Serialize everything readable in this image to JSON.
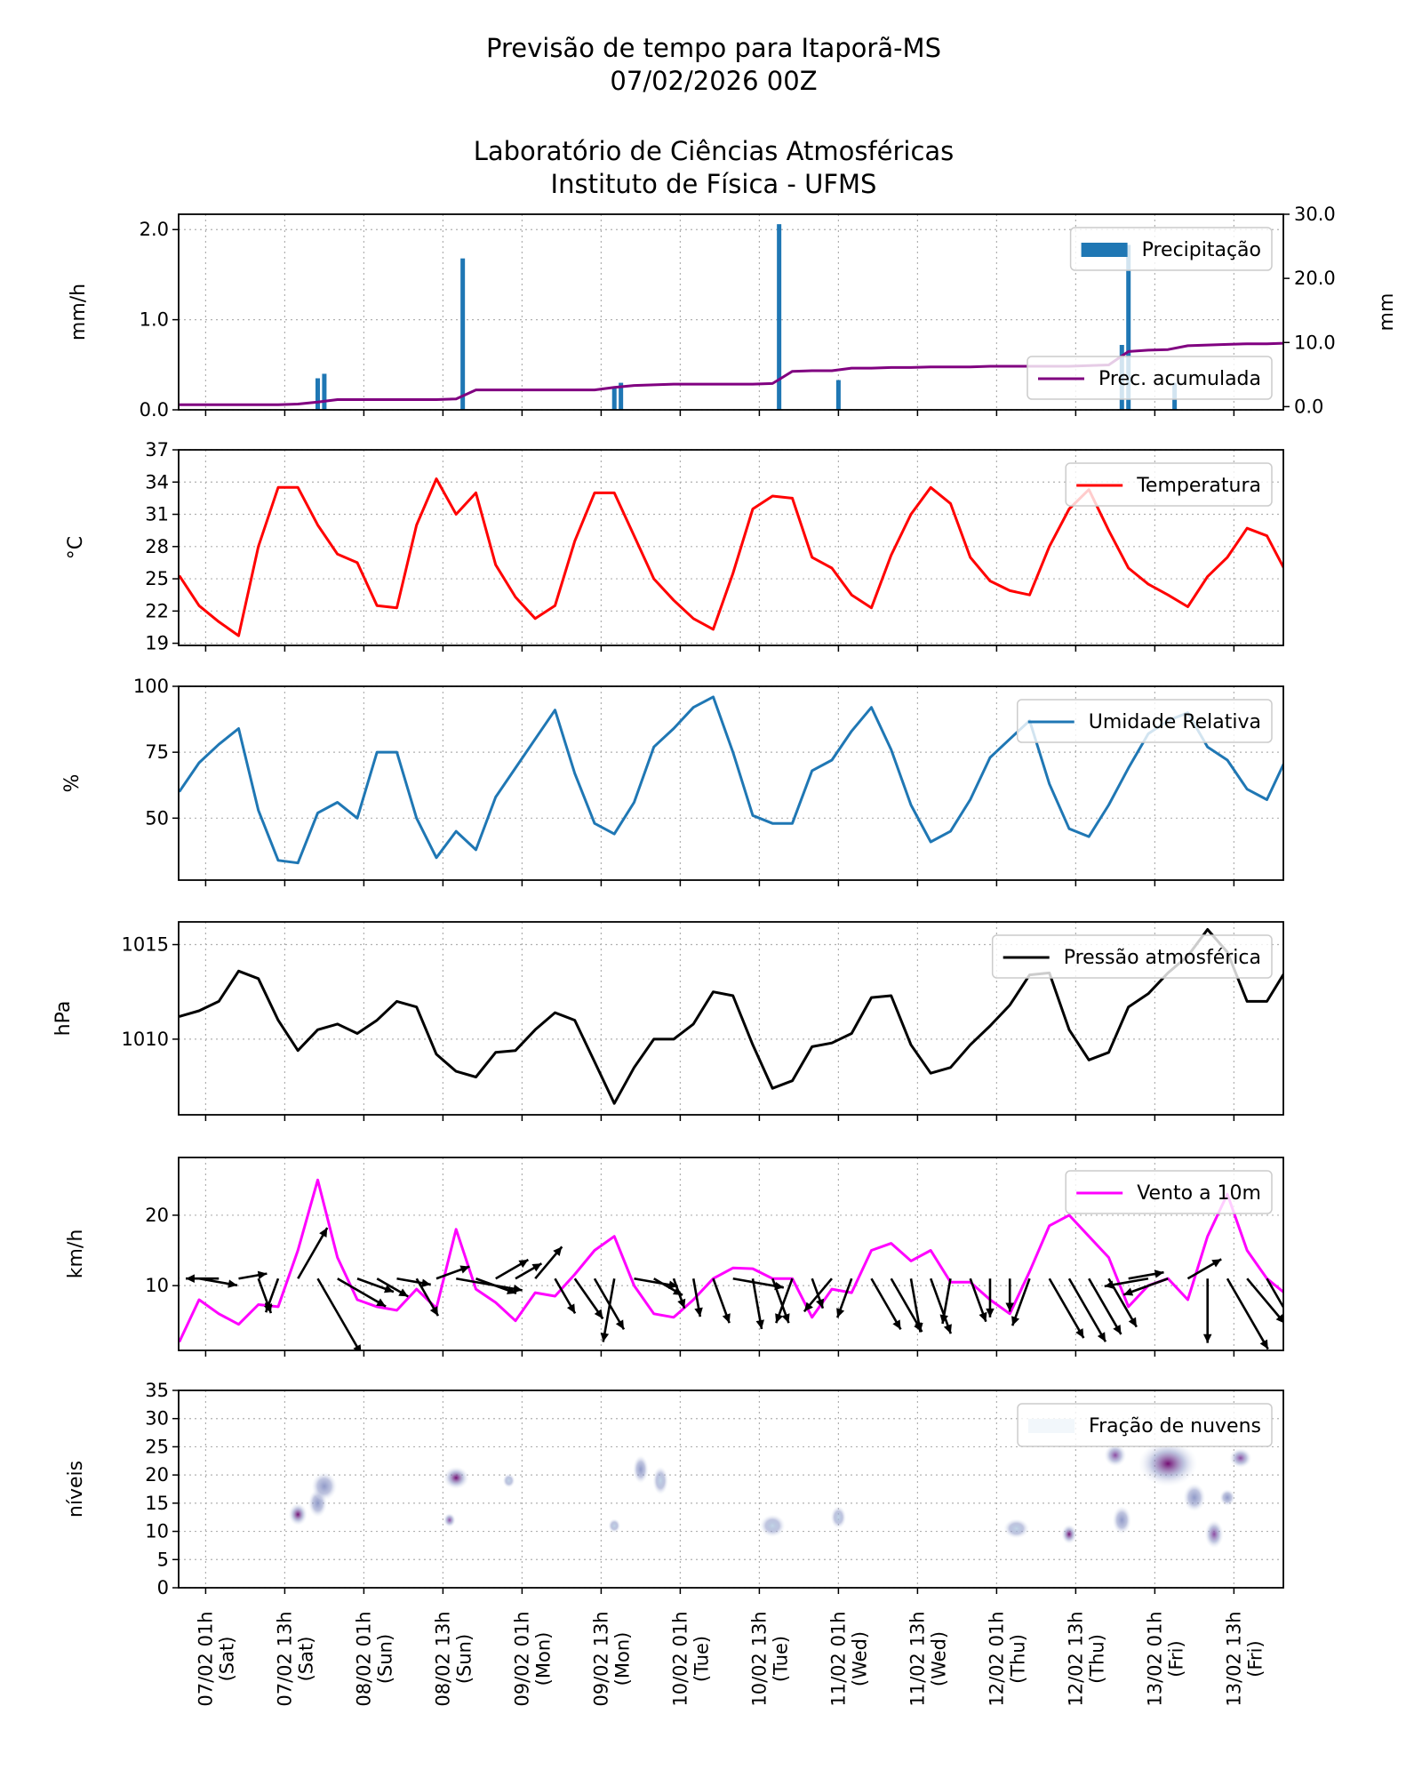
{
  "title": {
    "line1": "Previsão de tempo para Itaporã-MS",
    "line2": "07/02/2026 00Z",
    "line3": "Laboratório de Ciências Atmosféricas",
    "line4": "Instituto de Física - UFMS"
  },
  "chart_data": {
    "type": "line",
    "xlim": [
      "06/02 21h",
      "13/02 20h"
    ],
    "x_ticks": [
      {
        "date": "07/02 01h",
        "day": "(Sat)"
      },
      {
        "date": "07/02 13h",
        "day": "(Sat)"
      },
      {
        "date": "08/02 01h",
        "day": "(Sun)"
      },
      {
        "date": "08/02 13h",
        "day": "(Sun)"
      },
      {
        "date": "09/02 01h",
        "day": "(Mon)"
      },
      {
        "date": "09/02 13h",
        "day": "(Mon)"
      },
      {
        "date": "10/02 01h",
        "day": "(Tue)"
      },
      {
        "date": "10/02 13h",
        "day": "(Tue)"
      },
      {
        "date": "11/02 01h",
        "day": "(Wed)"
      },
      {
        "date": "11/02 13h",
        "day": "(Wed)"
      },
      {
        "date": "12/02 01h",
        "day": "(Thu)"
      },
      {
        "date": "12/02 13h",
        "day": "(Thu)"
      },
      {
        "date": "13/02 01h",
        "day": "(Fri)"
      },
      {
        "date": "13/02 13h",
        "day": "(Fri)"
      }
    ],
    "grid": true,
    "time": [
      "06/02 21h",
      "07/02 00h",
      "07/02 03h",
      "07/02 06h",
      "07/02 09h",
      "07/02 12h",
      "07/02 15h",
      "07/02 18h",
      "07/02 21h",
      "08/02 00h",
      "08/02 03h",
      "08/02 06h",
      "08/02 09h",
      "08/02 12h",
      "08/02 15h",
      "08/02 18h",
      "08/02 21h",
      "09/02 00h",
      "09/02 03h",
      "09/02 06h",
      "09/02 09h",
      "09/02 12h",
      "09/02 15h",
      "09/02 18h",
      "09/02 21h",
      "10/02 00h",
      "10/02 03h",
      "10/02 06h",
      "10/02 09h",
      "10/02 12h",
      "10/02 15h",
      "10/02 18h",
      "10/02 21h",
      "11/02 00h",
      "11/02 03h",
      "11/02 06h",
      "11/02 09h",
      "11/02 12h",
      "11/02 15h",
      "11/02 18h",
      "11/02 21h",
      "12/02 00h",
      "12/02 03h",
      "12/02 06h",
      "12/02 09h",
      "12/02 12h",
      "12/02 15h",
      "12/02 18h",
      "12/02 21h",
      "13/02 00h",
      "13/02 03h",
      "13/02 06h",
      "13/02 09h",
      "13/02 12h",
      "13/02 15h",
      "13/02 18h",
      "13/02 21h"
    ],
    "panels": [
      {
        "id": "precip",
        "ylabel": "mm/h",
        "ylim": [
          0,
          2.17
        ],
        "yticks": [
          0,
          1,
          2
        ],
        "ytick_labels": [
          "0.0",
          "1.0",
          "2.0"
        ],
        "bars": {
          "name": "Precipitação",
          "color": "#1f77b4",
          "legend": "top-right",
          "points": [
            {
              "t": "07/02 18h",
              "v": 0.35
            },
            {
              "t": "07/02 19h",
              "v": 0.4
            },
            {
              "t": "08/02 16h",
              "v": 1.68
            },
            {
              "t": "09/02 15h",
              "v": 0.25
            },
            {
              "t": "09/02 16h",
              "v": 0.3
            },
            {
              "t": "10/02 16h",
              "v": 2.06
            },
            {
              "t": "11/02 01h",
              "v": 0.33
            },
            {
              "t": "12/02 20h",
              "v": 0.72
            },
            {
              "t": "12/02 21h",
              "v": 1.83
            },
            {
              "t": "13/02 04h",
              "v": 0.3
            }
          ]
        },
        "right_axis": {
          "ylabel": "mm",
          "ylim": [
            -0.5,
            30
          ],
          "yticks": [
            0,
            10,
            20,
            30
          ],
          "ytick_labels": [
            "0.0",
            "10.0",
            "20.0",
            "30.0"
          ],
          "series": {
            "name": "Prec. acumulada",
            "color": "#800080",
            "legend": "lower-right",
            "values": [
              0.3,
              0.3,
              0.3,
              0.3,
              0.3,
              0.3,
              0.4,
              0.7,
              1.1,
              1.1,
              1.1,
              1.1,
              1.1,
              1.1,
              1.2,
              2.6,
              2.6,
              2.6,
              2.6,
              2.6,
              2.6,
              2.6,
              3.0,
              3.3,
              3.4,
              3.5,
              3.5,
              3.5,
              3.5,
              3.5,
              3.6,
              5.5,
              5.6,
              5.6,
              6.0,
              6.0,
              6.1,
              6.1,
              6.2,
              6.2,
              6.2,
              6.3,
              6.3,
              6.3,
              6.3,
              6.3,
              6.4,
              6.5,
              8.6,
              8.8,
              8.9,
              9.5,
              9.6,
              9.7,
              9.8,
              9.8,
              9.9
            ]
          }
        }
      },
      {
        "id": "temp",
        "ylabel": "°C",
        "ylim": [
          18.8,
          37
        ],
        "yticks": [
          19,
          22,
          25,
          28,
          31,
          34,
          37
        ],
        "ytick_labels": [
          "19",
          "22",
          "25",
          "28",
          "31",
          "34",
          "37"
        ],
        "series": {
          "name": "Temperatura",
          "color": "#ff0000",
          "legend": "top-right",
          "values": [
            25.3,
            22.5,
            21.0,
            19.7,
            28,
            33.5,
            33.5,
            30,
            27.3,
            26.5,
            22.5,
            22.3,
            30,
            34.3,
            31,
            33,
            26.3,
            23.3,
            21.3,
            22.5,
            28.5,
            33,
            33,
            29,
            25,
            23,
            21.3,
            20.3,
            25.5,
            31.5,
            32.7,
            32.5,
            27,
            26,
            23.5,
            22.3,
            27.2,
            31,
            33.5,
            32,
            27,
            24.8,
            23.9,
            23.5,
            28,
            31.5,
            33.3,
            29.5,
            26,
            24.5,
            23.5,
            22.4,
            25.2,
            27,
            29.7,
            29,
            25.5
          ]
        }
      },
      {
        "id": "rh",
        "ylabel": "%",
        "ylim": [
          26.5,
          100
        ],
        "yticks": [
          50,
          75,
          100
        ],
        "ytick_labels": [
          "50",
          "75",
          "100"
        ],
        "series": {
          "name": "Umidade Relativa",
          "color": "#1f77b4",
          "legend": "top-right",
          "values": [
            60,
            71,
            78,
            84,
            53,
            34,
            33,
            52,
            56,
            50,
            75,
            75,
            50,
            35,
            45,
            38,
            58,
            69,
            80,
            91,
            67,
            48,
            44,
            56,
            77,
            84,
            92,
            96,
            75,
            51,
            48,
            48,
            68,
            72,
            83,
            92,
            76,
            55,
            41,
            45,
            57,
            73,
            80,
            87,
            63,
            46,
            43,
            55,
            69,
            82,
            87,
            90,
            77,
            72,
            61,
            57,
            73
          ]
        }
      },
      {
        "id": "pressure",
        "ylabel": "hPa",
        "ylim": [
          1006.0,
          1016.2
        ],
        "yticks": [
          1010,
          1015
        ],
        "ytick_labels": [
          "1010",
          "1015"
        ],
        "series": {
          "name": "Pressão atmosférica",
          "color": "#000000",
          "legend": "top-right",
          "values": [
            1011.2,
            1011.5,
            1012.0,
            1013.6,
            1013.2,
            1011.0,
            1009.4,
            1010.5,
            1010.8,
            1010.3,
            1011.0,
            1012.0,
            1011.7,
            1009.2,
            1008.3,
            1008.0,
            1009.3,
            1009.4,
            1010.5,
            1011.4,
            1011.0,
            1008.8,
            1006.6,
            1008.5,
            1010.0,
            1010.0,
            1010.8,
            1012.5,
            1012.3,
            1009.7,
            1007.4,
            1007.8,
            1009.6,
            1009.8,
            1010.3,
            1012.2,
            1012.3,
            1009.7,
            1008.2,
            1008.5,
            1009.7,
            1010.7,
            1011.8,
            1013.4,
            1013.5,
            1010.5,
            1008.9,
            1009.3,
            1011.7,
            1012.4,
            1013.5,
            1014.4,
            1015.8,
            1014.6,
            1012.0,
            1012.0,
            1013.7
          ]
        }
      },
      {
        "id": "wind",
        "ylabel": "km/h",
        "ylim": [
          0.8,
          28.2
        ],
        "yticks": [
          10,
          20
        ],
        "ytick_labels": [
          "10",
          "20"
        ],
        "series": {
          "name": "Vento a 10m",
          "color": "#ff00ff",
          "legend": "top-right",
          "values": [
            2,
            8,
            6,
            4.5,
            7.3,
            7,
            15,
            25,
            14,
            8,
            7,
            6.5,
            9.5,
            6.8,
            18,
            9.5,
            7.6,
            5,
            9,
            8.5,
            11.6,
            15,
            17,
            10,
            6,
            5.5,
            8,
            11,
            12.5,
            12.4,
            11,
            11,
            5.5,
            9.5,
            9,
            15,
            16,
            13.5,
            15,
            10.5,
            10.5,
            8,
            6,
            12,
            18.5,
            20,
            17,
            14,
            7,
            10,
            11,
            8,
            17,
            23,
            15,
            11,
            8.7
          ]
        },
        "arrows": {
          "color": "#000000",
          "direction_deg": [
            280,
            100,
            270,
            80,
            160,
            200,
            30,
            150,
            120,
            110,
            120,
            100,
            150,
            70,
            100,
            110,
            60,
            60,
            40,
            150,
            145,
            150,
            190,
            100,
            120,
            160,
            170,
            160,
            100,
            170,
            160,
            200,
            160,
            220,
            200,
            150,
            150,
            170,
            160,
            190,
            160,
            180,
            180,
            200,
            150,
            150,
            150,
            150,
            80,
            260,
            250,
            60,
            180,
            150,
            140,
            150,
            110
          ]
        }
      },
      {
        "id": "clouds",
        "type": "contour",
        "ylabel": "níveis",
        "ylim": [
          0,
          35
        ],
        "yticks": [
          0,
          5,
          10,
          15,
          20,
          25,
          30,
          35
        ],
        "ytick_labels": [
          "0",
          "5",
          "10",
          "15",
          "20",
          "25",
          "30",
          "35"
        ],
        "legend_label": "Fração de nuvens",
        "legend": "top-right",
        "colormap": [
          "#f2f7fb",
          "#bfd3e6",
          "#8c96c6",
          "#88419d",
          "#6e016b"
        ],
        "blobs": [
          {
            "t": "07/02 15h",
            "level": 13,
            "fraction": 0.8,
            "hours_span": 2,
            "levels_span": 3
          },
          {
            "t": "07/02 18h",
            "level": 15,
            "fraction": 0.35,
            "hours_span": 2,
            "levels_span": 4
          },
          {
            "t": "07/02 19h",
            "level": 18,
            "fraction": 0.45,
            "hours_span": 3,
            "levels_span": 4
          },
          {
            "t": "08/02 14h",
            "level": 12,
            "fraction": 0.5,
            "hours_span": 1,
            "levels_span": 1.5
          },
          {
            "t": "08/02 15h",
            "level": 19.5,
            "fraction": 0.85,
            "hours_span": 3,
            "levels_span": 3
          },
          {
            "t": "08/02 23h",
            "level": 19,
            "fraction": 0.15,
            "hours_span": 1,
            "levels_span": 1.5
          },
          {
            "t": "09/02 15h",
            "level": 11,
            "fraction": 0.1,
            "hours_span": 1,
            "levels_span": 1.5
          },
          {
            "t": "09/02 19h",
            "level": 21,
            "fraction": 0.45,
            "hours_span": 1.5,
            "levels_span": 4
          },
          {
            "t": "09/02 22h",
            "level": 19,
            "fraction": 0.2,
            "hours_span": 1.5,
            "levels_span": 4
          },
          {
            "t": "10/02 15h",
            "level": 11,
            "fraction": 0.25,
            "hours_span": 3,
            "levels_span": 3
          },
          {
            "t": "11/02 01h",
            "level": 12.5,
            "fraction": 0.25,
            "hours_span": 1.5,
            "levels_span": 3
          },
          {
            "t": "12/02 04h",
            "level": 10.5,
            "fraction": 0.2,
            "hours_span": 3,
            "levels_span": 2.5
          },
          {
            "t": "12/02 12h",
            "level": 9.5,
            "fraction": 0.75,
            "hours_span": 1.5,
            "levels_span": 2.5
          },
          {
            "t": "12/02 19h",
            "level": 23.5,
            "fraction": 0.6,
            "hours_span": 2.5,
            "levels_span": 3
          },
          {
            "t": "12/02 20h",
            "level": 12,
            "fraction": 0.3,
            "hours_span": 2,
            "levels_span": 4
          },
          {
            "t": "13/02 03h",
            "level": 22,
            "fraction": 0.95,
            "hours_span": 8,
            "levels_span": 7
          },
          {
            "t": "13/02 07h",
            "level": 16,
            "fraction": 0.4,
            "hours_span": 2.5,
            "levels_span": 4
          },
          {
            "t": "13/02 10h",
            "level": 9.5,
            "fraction": 0.65,
            "hours_span": 2,
            "levels_span": 4
          },
          {
            "t": "13/02 12h",
            "level": 16,
            "fraction": 0.3,
            "hours_span": 1.5,
            "levels_span": 2
          },
          {
            "t": "13/02 14h",
            "level": 23,
            "fraction": 0.55,
            "hours_span": 2.5,
            "levels_span": 2.5
          }
        ]
      }
    ]
  }
}
